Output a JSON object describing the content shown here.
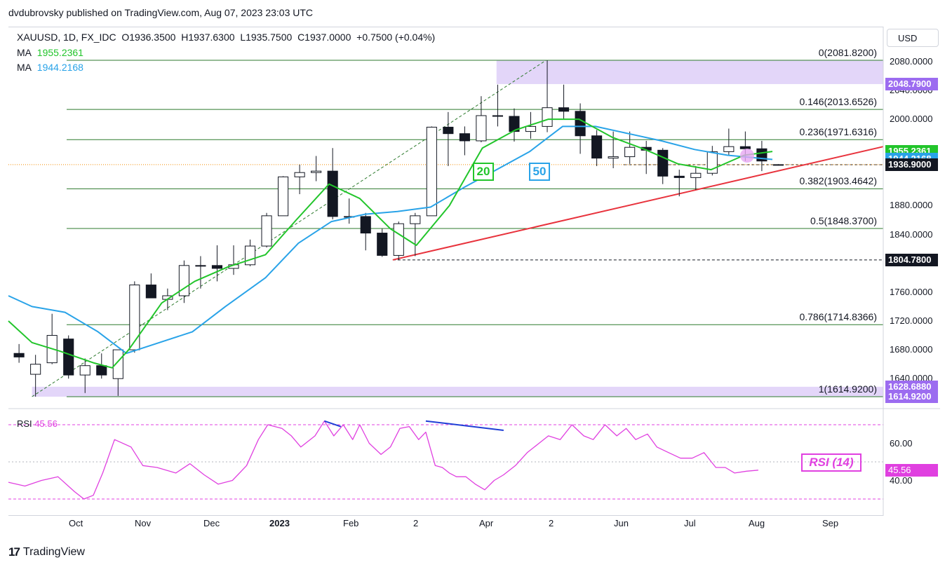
{
  "attribution": "dvdubrovsky published on TradingView.com, Aug 07, 2023 23:03 UTC",
  "legend": {
    "symbol": "XAUUSD, 1D, FX_IDC",
    "open": "O1936.3500",
    "high": "H1937.6300",
    "low": "L1935.7500",
    "close": "C1937.0000",
    "change": "+0.7500 (+0.04%)",
    "ma1_label": "MA",
    "ma1_value": "1955.2361",
    "ma2_label": "MA",
    "ma2_value": "1944.2168"
  },
  "currency_button": "USD",
  "colors": {
    "ma20": "#22c52b",
    "ma50": "#29a3e8",
    "candle_up": "#ffffff",
    "candle_down": "#131722",
    "fib_line": "#2d7a2d",
    "trendline": "#e8323c",
    "zone": "#d9c8f7",
    "rsi": "#e040e0",
    "divergence": "#1f3fd6",
    "current_price": "#f28c00",
    "tag_purple": "#9c6cf0"
  },
  "price_axis": {
    "ticks": [
      "2080.0000",
      "2040.0000",
      "2000.0000",
      "1880.0000",
      "1840.0000",
      "1760.0000",
      "1720.0000",
      "1680.0000",
      "1640.0000"
    ],
    "tick_values": [
      2080,
      2040,
      2000,
      1880,
      1840,
      1760,
      1720,
      1680,
      1640
    ]
  },
  "price_tags": [
    {
      "text": "2048.7900",
      "value": 2048.79,
      "bg": "#9c6cf0",
      "fg": "#ffffff"
    },
    {
      "text": "1955.2361",
      "value": 1955.2361,
      "bg": "#22c52b",
      "fg": "#ffffff"
    },
    {
      "text": "1944.2168",
      "value": 1944.2168,
      "bg": "#29a3e8",
      "fg": "#ffffff"
    },
    {
      "text": "1937.0000",
      "value": 1937.0,
      "bg": "#f28c00",
      "fg": "#131722"
    },
    {
      "text": "1936.9000",
      "value": 1936.9,
      "bg": "#131722",
      "fg": "#ffffff"
    },
    {
      "text": "1804.7800",
      "value": 1804.78,
      "bg": "#131722",
      "fg": "#ffffff"
    },
    {
      "text": "1628.6880",
      "value": 1628.688,
      "bg": "#9c6cf0",
      "fg": "#ffffff"
    },
    {
      "text": "1614.9200",
      "value": 1614.92,
      "bg": "#9c6cf0",
      "fg": "#ffffff"
    }
  ],
  "fib_levels": [
    {
      "label": "0(2081.8200)",
      "value": 2081.82
    },
    {
      "label": "0.146(2013.6526)",
      "value": 2013.6526
    },
    {
      "label": "0.236(1971.6316)",
      "value": 1971.6316
    },
    {
      "label": "0.382(1903.4642)",
      "value": 1903.4642
    },
    {
      "label": "0.5(1848.3700)",
      "value": 1848.37
    },
    {
      "label": "0.786(1714.8366)",
      "value": 1714.8366
    },
    {
      "label": "1(1614.9200)",
      "value": 1614.92
    }
  ],
  "ma_badges": {
    "ma20": "20",
    "ma50": "50"
  },
  "rsi": {
    "label": "RSI",
    "value": "45.56",
    "badge": "RSI (14)",
    "ticks": [
      "60.00",
      "40.00"
    ],
    "tick_values": [
      60,
      40
    ],
    "upper_band": 70,
    "mid_band": 50,
    "lower_band": 30
  },
  "time_axis": [
    "Oct",
    "Nov",
    "Dec",
    "2023",
    "Feb",
    "2",
    "Apr",
    "2",
    "Jun",
    "Jul",
    "Aug",
    "Sep"
  ],
  "branding": "TradingView",
  "chart_data": {
    "type": "candlestick",
    "symbol": "XAUUSD",
    "interval": "1D",
    "ylim": [
      1605,
      2095
    ],
    "x_start": "2022-09-18",
    "x_end": "2023-09-24",
    "candles_weekly_summary": [
      {
        "date": "2022-09-19",
        "open": 1675,
        "high": 1688,
        "low": 1662,
        "close": 1670
      },
      {
        "date": "2022-09-26",
        "open": 1646,
        "high": 1673,
        "low": 1615,
        "close": 1660
      },
      {
        "date": "2022-10-03",
        "open": 1662,
        "high": 1730,
        "low": 1660,
        "close": 1700
      },
      {
        "date": "2022-10-10",
        "open": 1695,
        "high": 1700,
        "low": 1640,
        "close": 1645
      },
      {
        "date": "2022-10-17",
        "open": 1645,
        "high": 1668,
        "low": 1620,
        "close": 1658
      },
      {
        "date": "2022-10-24",
        "open": 1658,
        "high": 1675,
        "low": 1640,
        "close": 1645
      },
      {
        "date": "2022-10-31",
        "open": 1640,
        "high": 1680,
        "low": 1616,
        "close": 1680
      },
      {
        "date": "2022-11-07",
        "open": 1680,
        "high": 1775,
        "low": 1676,
        "close": 1770
      },
      {
        "date": "2022-11-14",
        "open": 1770,
        "high": 1786,
        "low": 1752,
        "close": 1752
      },
      {
        "date": "2022-11-21",
        "open": 1750,
        "high": 1765,
        "low": 1735,
        "close": 1755
      },
      {
        "date": "2022-11-28",
        "open": 1755,
        "high": 1804,
        "low": 1745,
        "close": 1797
      },
      {
        "date": "2022-12-05",
        "open": 1797,
        "high": 1810,
        "low": 1765,
        "close": 1797
      },
      {
        "date": "2022-12-12",
        "open": 1797,
        "high": 1825,
        "low": 1775,
        "close": 1793
      },
      {
        "date": "2022-12-19",
        "open": 1793,
        "high": 1825,
        "low": 1784,
        "close": 1798
      },
      {
        "date": "2022-12-26",
        "open": 1798,
        "high": 1833,
        "low": 1796,
        "close": 1824
      },
      {
        "date": "2023-01-02",
        "open": 1824,
        "high": 1870,
        "low": 1822,
        "close": 1866
      },
      {
        "date": "2023-01-09",
        "open": 1866,
        "high": 1921,
        "low": 1866,
        "close": 1920
      },
      {
        "date": "2023-01-16",
        "open": 1920,
        "high": 1937,
        "low": 1896,
        "close": 1926
      },
      {
        "date": "2023-01-23",
        "open": 1926,
        "high": 1949,
        "low": 1914,
        "close": 1928
      },
      {
        "date": "2023-01-30",
        "open": 1928,
        "high": 1960,
        "low": 1861,
        "close": 1865
      },
      {
        "date": "2023-02-06",
        "open": 1865,
        "high": 1890,
        "low": 1855,
        "close": 1865
      },
      {
        "date": "2023-02-13",
        "open": 1865,
        "high": 1870,
        "low": 1818,
        "close": 1842
      },
      {
        "date": "2023-02-20",
        "open": 1842,
        "high": 1848,
        "low": 1809,
        "close": 1811
      },
      {
        "date": "2023-02-27",
        "open": 1811,
        "high": 1858,
        "low": 1805,
        "close": 1855
      },
      {
        "date": "2023-03-06",
        "open": 1855,
        "high": 1870,
        "low": 1810,
        "close": 1866
      },
      {
        "date": "2023-03-13",
        "open": 1866,
        "high": 1990,
        "low": 1866,
        "close": 1989
      },
      {
        "date": "2023-03-20",
        "open": 1989,
        "high": 2010,
        "low": 1935,
        "close": 1980
      },
      {
        "date": "2023-03-27",
        "open": 1980,
        "high": 1990,
        "low": 1950,
        "close": 1970
      },
      {
        "date": "2023-04-03",
        "open": 1970,
        "high": 2032,
        "low": 1968,
        "close": 2005
      },
      {
        "date": "2023-04-10",
        "open": 2005,
        "high": 2048,
        "low": 1990,
        "close": 2004
      },
      {
        "date": "2023-04-17",
        "open": 2004,
        "high": 2015,
        "low": 1969,
        "close": 1983
      },
      {
        "date": "2023-04-24",
        "open": 1983,
        "high": 2010,
        "low": 1973,
        "close": 1990
      },
      {
        "date": "2023-05-01",
        "open": 1990,
        "high": 2081.82,
        "low": 1982,
        "close": 2016
      },
      {
        "date": "2023-05-08",
        "open": 2016,
        "high": 2048,
        "low": 2000,
        "close": 2011
      },
      {
        "date": "2023-05-15",
        "open": 2011,
        "high": 2022,
        "low": 1952,
        "close": 1977
      },
      {
        "date": "2023-05-22",
        "open": 1977,
        "high": 1985,
        "low": 1935,
        "close": 1946
      },
      {
        "date": "2023-05-29",
        "open": 1946,
        "high": 1983,
        "low": 1932,
        "close": 1948
      },
      {
        "date": "2023-06-05",
        "open": 1948,
        "high": 1983,
        "low": 1938,
        "close": 1961
      },
      {
        "date": "2023-06-12",
        "open": 1961,
        "high": 1970,
        "low": 1924,
        "close": 1957
      },
      {
        "date": "2023-06-19",
        "open": 1957,
        "high": 1960,
        "low": 1910,
        "close": 1921
      },
      {
        "date": "2023-06-26",
        "open": 1921,
        "high": 1930,
        "low": 1893,
        "close": 1919
      },
      {
        "date": "2023-07-03",
        "open": 1919,
        "high": 1935,
        "low": 1902,
        "close": 1925
      },
      {
        "date": "2023-07-10",
        "open": 1925,
        "high": 1963,
        "low": 1922,
        "close": 1955
      },
      {
        "date": "2023-07-17",
        "open": 1955,
        "high": 1987,
        "low": 1950,
        "close": 1962
      },
      {
        "date": "2023-07-24",
        "open": 1962,
        "high": 1983,
        "low": 1942,
        "close": 1959
      },
      {
        "date": "2023-07-31",
        "open": 1959,
        "high": 1970,
        "low": 1928,
        "close": 1942
      },
      {
        "date": "2023-08-07",
        "open": 1936.35,
        "high": 1937.63,
        "low": 1935.75,
        "close": 1937.0
      }
    ],
    "ma20_path": [
      [
        "2022-09-18",
        1720
      ],
      [
        "2022-09-28",
        1690
      ],
      [
        "2022-10-10",
        1678
      ],
      [
        "2022-10-24",
        1662
      ],
      [
        "2022-11-01",
        1655
      ],
      [
        "2022-11-08",
        1680
      ],
      [
        "2022-11-22",
        1745
      ],
      [
        "2022-12-06",
        1775
      ],
      [
        "2022-12-20",
        1795
      ],
      [
        "2023-01-05",
        1812
      ],
      [
        "2023-01-18",
        1860
      ],
      [
        "2023-02-01",
        1910
      ],
      [
        "2023-02-14",
        1890
      ],
      [
        "2023-02-27",
        1848
      ],
      [
        "2023-03-10",
        1825
      ],
      [
        "2023-03-24",
        1880
      ],
      [
        "2023-04-07",
        1960
      ],
      [
        "2023-04-21",
        1985
      ],
      [
        "2023-05-05",
        2000
      ],
      [
        "2023-05-18",
        2000
      ],
      [
        "2023-06-01",
        1975
      ],
      [
        "2023-06-15",
        1958
      ],
      [
        "2023-06-29",
        1938
      ],
      [
        "2023-07-13",
        1930
      ],
      [
        "2023-07-27",
        1950
      ],
      [
        "2023-08-08",
        1955.24
      ]
    ],
    "ma50_path": [
      [
        "2022-09-18",
        1755
      ],
      [
        "2022-09-28",
        1740
      ],
      [
        "2022-10-12",
        1732
      ],
      [
        "2022-10-26",
        1705
      ],
      [
        "2022-11-07",
        1675
      ],
      [
        "2022-11-21",
        1690
      ],
      [
        "2022-12-05",
        1705
      ],
      [
        "2022-12-19",
        1740
      ],
      [
        "2023-01-05",
        1780
      ],
      [
        "2023-01-19",
        1828
      ],
      [
        "2023-02-02",
        1858
      ],
      [
        "2023-02-16",
        1868
      ],
      [
        "2023-03-02",
        1872
      ],
      [
        "2023-03-16",
        1878
      ],
      [
        "2023-03-30",
        1905
      ],
      [
        "2023-04-13",
        1930
      ],
      [
        "2023-04-27",
        1955
      ],
      [
        "2023-05-11",
        1990
      ],
      [
        "2023-05-25",
        1990
      ],
      [
        "2023-06-08",
        1980
      ],
      [
        "2023-06-22",
        1970
      ],
      [
        "2023-07-06",
        1958
      ],
      [
        "2023-07-20",
        1950
      ],
      [
        "2023-08-08",
        1944.22
      ]
    ],
    "trendline": [
      [
        "2023-02-28",
        1804.78
      ],
      [
        "2023-09-24",
        1962
      ]
    ],
    "retracement_anchor_line": [
      [
        "2022-09-28",
        1614.92
      ],
      [
        "2023-05-04",
        2081.82
      ]
    ],
    "zones": [
      {
        "from": "2023-04-13",
        "to": "2023-09-24",
        "low": 2048.79,
        "high": 2081.82
      },
      {
        "from": "2022-09-28",
        "to": "2023-09-24",
        "low": 1614.92,
        "high": 1628.688
      }
    ],
    "horizontal_dashed": [
      {
        "from": "2023-02-28",
        "value": 1804.78
      },
      {
        "from": "2023-06-06",
        "value": 1936.9
      },
      {
        "from": "2022-09-18",
        "value": 1937.0
      }
    ],
    "rsi_series": [
      [
        "2022-09-18",
        39
      ],
      [
        "2022-09-25",
        37
      ],
      [
        "2022-10-02",
        40
      ],
      [
        "2022-10-09",
        42
      ],
      [
        "2022-10-16",
        34
      ],
      [
        "2022-10-20",
        30
      ],
      [
        "2022-10-24",
        32
      ],
      [
        "2022-10-28",
        44
      ],
      [
        "2022-11-02",
        62
      ],
      [
        "2022-11-09",
        58
      ],
      [
        "2022-11-14",
        48
      ],
      [
        "2022-11-20",
        47
      ],
      [
        "2022-11-28",
        44
      ],
      [
        "2022-12-04",
        49
      ],
      [
        "2022-12-10",
        43
      ],
      [
        "2022-12-16",
        38
      ],
      [
        "2022-12-22",
        40
      ],
      [
        "2022-12-28",
        48
      ],
      [
        "2023-01-02",
        62
      ],
      [
        "2023-01-06",
        70
      ],
      [
        "2023-01-12",
        68
      ],
      [
        "2023-01-16",
        64
      ],
      [
        "2023-01-20",
        58
      ],
      [
        "2023-01-26",
        64
      ],
      [
        "2023-01-30",
        72
      ],
      [
        "2023-02-03",
        64
      ],
      [
        "2023-02-07",
        70
      ],
      [
        "2023-02-11",
        62
      ],
      [
        "2023-02-14",
        70
      ],
      [
        "2023-02-18",
        60
      ],
      [
        "2023-02-23",
        54
      ],
      [
        "2023-02-27",
        58
      ],
      [
        "2023-03-03",
        68
      ],
      [
        "2023-03-07",
        69
      ],
      [
        "2023-03-11",
        62
      ],
      [
        "2023-03-14",
        66
      ],
      [
        "2023-03-18",
        48
      ],
      [
        "2023-03-21",
        47
      ],
      [
        "2023-03-24",
        44
      ],
      [
        "2023-03-27",
        42
      ],
      [
        "2023-03-31",
        42
      ],
      [
        "2023-04-04",
        38
      ],
      [
        "2023-04-08",
        35
      ],
      [
        "2023-04-12",
        40
      ],
      [
        "2023-04-16",
        43
      ],
      [
        "2023-04-21",
        48
      ],
      [
        "2023-04-26",
        55
      ],
      [
        "2023-05-01",
        60
      ],
      [
        "2023-05-05",
        64
      ],
      [
        "2023-05-10",
        62
      ],
      [
        "2023-05-15",
        70
      ],
      [
        "2023-05-20",
        64
      ],
      [
        "2023-05-24",
        62
      ],
      [
        "2023-05-29",
        70
      ],
      [
        "2023-06-03",
        64
      ],
      [
        "2023-06-07",
        68
      ],
      [
        "2023-06-11",
        62
      ],
      [
        "2023-06-16",
        65
      ],
      [
        "2023-06-20",
        58
      ],
      [
        "2023-06-25",
        55
      ],
      [
        "2023-06-30",
        52
      ],
      [
        "2023-07-05",
        52
      ],
      [
        "2023-07-10",
        55
      ],
      [
        "2023-07-15",
        47
      ],
      [
        "2023-07-19",
        47
      ],
      [
        "2023-07-23",
        44
      ],
      [
        "2023-07-28",
        45
      ],
      [
        "2023-08-02",
        45.56
      ]
    ],
    "rsi_path_note": "",
    "divergence_lines": [
      {
        "panel": "rsi",
        "from": [
          "2023-01-30",
          72
        ],
        "to": [
          "2023-02-06",
          69
        ]
      },
      {
        "panel": "rsi",
        "from": [
          "2023-03-14",
          72
        ],
        "to": [
          "2023-04-16",
          67
        ]
      }
    ]
  }
}
